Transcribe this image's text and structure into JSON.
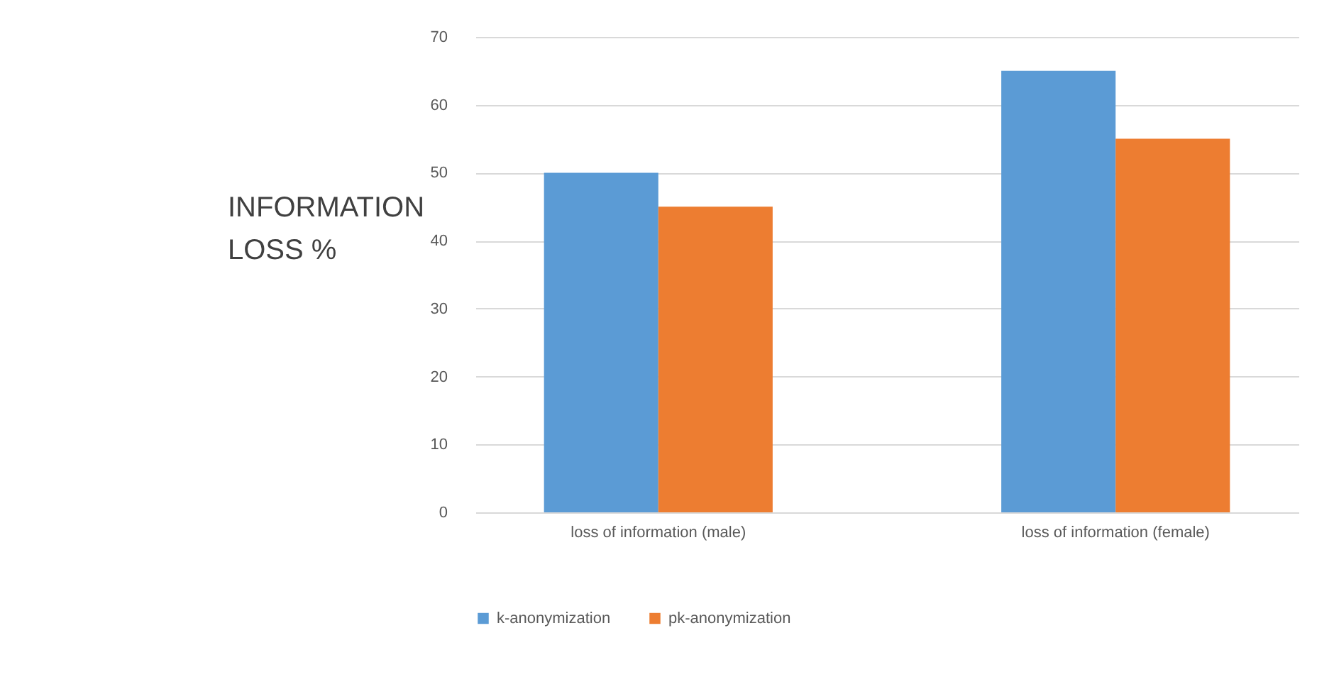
{
  "chart_data": {
    "type": "bar",
    "ylabel": "INFORMATION LOSS %",
    "categories": [
      "loss of information (male)",
      "loss of information (female)"
    ],
    "series": [
      {
        "name": "k-anonymization",
        "color": "#5b9bd5",
        "values": [
          50,
          65
        ]
      },
      {
        "name": "pk-anonymization",
        "color": "#ed7d31",
        "values": [
          45,
          55
        ]
      }
    ],
    "ylim": [
      0,
      70
    ],
    "yticks": [
      0,
      10,
      20,
      30,
      40,
      50,
      60,
      70
    ],
    "grid": "y",
    "legend": "bottom"
  }
}
